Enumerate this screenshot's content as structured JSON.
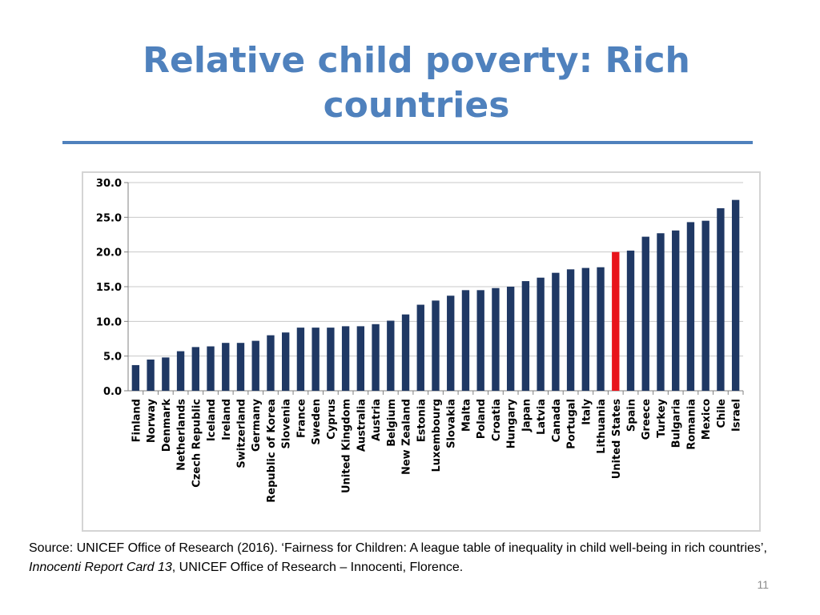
{
  "slide": {
    "title": "Relative child poverty: Rich countries",
    "source_prefix": "Source: UNICEF Office of Research (2016). ‘Fairness for Children: A league table of inequality in child well-being in rich countries’, ",
    "source_italic": "Innocenti Report Card 13",
    "source_suffix": ", UNICEF Office of Research – Innocenti, Florence.",
    "page_number": "11"
  },
  "colors": {
    "title": "#4f81bd",
    "bar": "#1f3864",
    "highlight_bar": "#e8141b"
  },
  "chart_data": {
    "type": "bar",
    "title": "",
    "xlabel": "",
    "ylabel": "",
    "ylim": [
      0,
      30
    ],
    "yticks": [
      "0.0",
      "5.0",
      "10.0",
      "15.0",
      "20.0",
      "25.0",
      "30.0"
    ],
    "grid": true,
    "highlight": "United States",
    "categories": [
      "Finland",
      "Norway",
      "Denmark",
      "Netherlands",
      "Czech Republic",
      "Iceland",
      "Ireland",
      "Switzerland",
      "Germany",
      "Republic of Korea",
      "Slovenia",
      "France",
      "Sweden",
      "Cyprus",
      "United Kingdom",
      "Australia",
      "Austria",
      "Belgium",
      "New Zealand",
      "Estonia",
      "Luxembourg",
      "Slovakia",
      "Malta",
      "Poland",
      "Croatia",
      "Hungary",
      "Japan",
      "Latvia",
      "Canada",
      "Portugal",
      "Italy",
      "Lithuania",
      "United States",
      "Spain",
      "Greece",
      "Turkey",
      "Bulgaria",
      "Romania",
      "Mexico",
      "Chile",
      "Israel"
    ],
    "values": [
      3.7,
      4.5,
      4.8,
      5.7,
      6.3,
      6.4,
      6.9,
      6.9,
      7.2,
      8.0,
      8.4,
      9.1,
      9.1,
      9.1,
      9.3,
      9.3,
      9.6,
      10.1,
      11.0,
      12.4,
      13.0,
      13.7,
      14.5,
      14.5,
      14.8,
      15.0,
      15.8,
      16.3,
      17.0,
      17.5,
      17.7,
      17.8,
      20.0,
      20.2,
      22.2,
      22.7,
      23.1,
      24.3,
      24.5,
      26.3,
      27.5
    ]
  }
}
